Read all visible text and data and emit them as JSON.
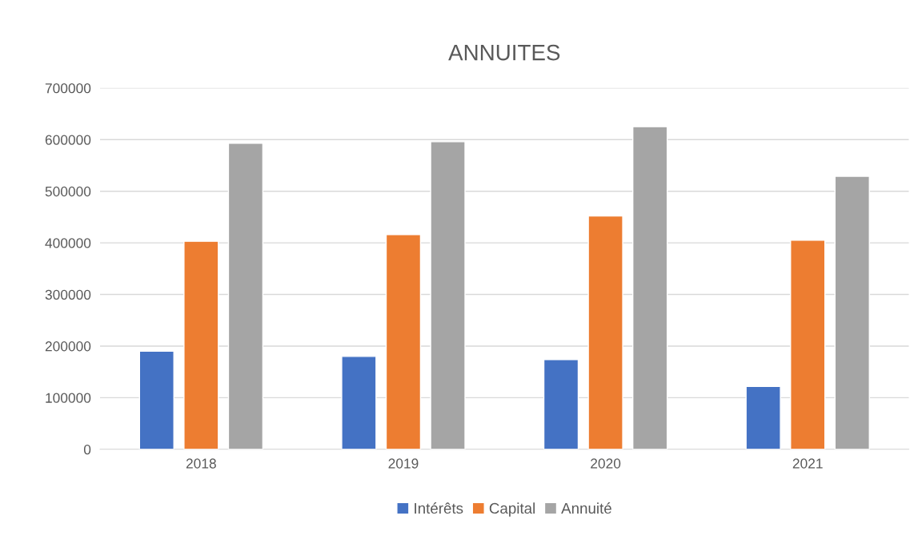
{
  "chart_data": {
    "type": "bar",
    "title": "ANNUITES",
    "categories": [
      "2018",
      "2019",
      "2020",
      "2021"
    ],
    "series": [
      {
        "name": "Intérêts",
        "color": "#4472c4",
        "values": [
          190000,
          180000,
          174000,
          122000
        ]
      },
      {
        "name": "Capital",
        "color": "#ed7d31",
        "values": [
          403000,
          416000,
          452000,
          405000
        ]
      },
      {
        "name": "Annuité",
        "color": "#a5a5a5",
        "values": [
          593000,
          596000,
          625000,
          529000
        ]
      }
    ],
    "ylim": [
      0,
      700000
    ],
    "yticks": [
      0,
      100000,
      200000,
      300000,
      400000,
      500000,
      600000,
      700000
    ],
    "grid": "y",
    "legend": "bottom"
  }
}
